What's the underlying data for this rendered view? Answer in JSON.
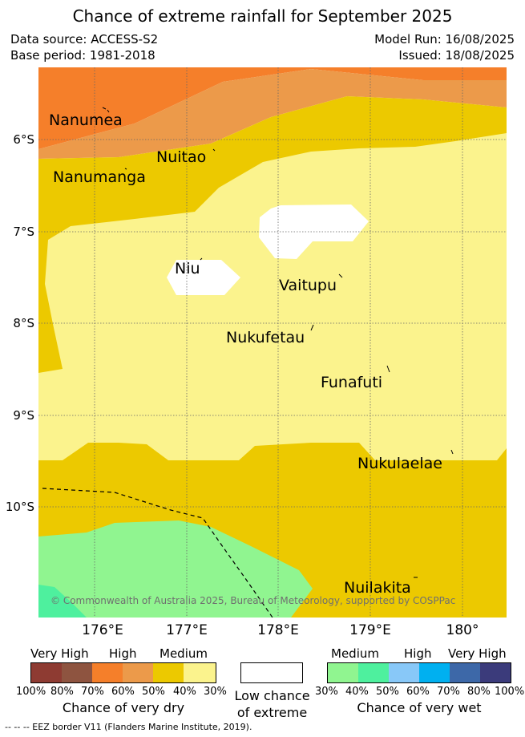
{
  "title": "Chance of extreme rainfall for September 2025",
  "meta": {
    "data_source": "Data source: ACCESS-S2",
    "base_period": "Base period: 1981-2018",
    "model_run": "Model Run: 16/08/2025",
    "issued": "Issued: 18/08/2025"
  },
  "map": {
    "latitudes": [
      "6°S",
      "7°S",
      "8°S",
      "9°S",
      "10°S"
    ],
    "longitudes": [
      "176°E",
      "177°E",
      "178°E",
      "179°E",
      "180°"
    ],
    "places": [
      "Nanumea",
      "Nuitao",
      "Nanumanga",
      "Niu",
      "Vaitupu",
      "Nukufetau",
      "Funafuti",
      "Nukulaelae",
      "Nuilakita"
    ],
    "copyright": "© Commonwealth of Australia 2025, Bureau of Meteorology, supported by COSPPac",
    "colors": {
      "very_high_dry": "#f57f2a",
      "high_dry": "#ec9a4a",
      "medium_dry": "#ecc900",
      "low_dry": "#fbf38d",
      "low_chance": "#ffffff",
      "medium_wet_30": "#90f590",
      "medium_wet_40": "#4ef09e"
    }
  },
  "legend": {
    "dry": {
      "categories": [
        "Very High",
        "High",
        "Medium"
      ],
      "colors": [
        "#8e3b32",
        "#8e5440",
        "#f57f2a",
        "#ec9a4a",
        "#ecc900",
        "#fbf38d"
      ],
      "ticks": [
        "100%",
        "80%",
        "70%",
        "60%",
        "50%",
        "40%",
        "30%"
      ],
      "title": "Chance of very dry"
    },
    "neutral": {
      "color": "#ffffff",
      "title_line1": "Low chance",
      "title_line2": "of extreme"
    },
    "wet": {
      "categories": [
        "Medium",
        "High",
        "Very High"
      ],
      "colors": [
        "#90f590",
        "#4ef09e",
        "#88c8f8",
        "#00b0f0",
        "#3d68a8",
        "#3b3b7b"
      ],
      "ticks": [
        "30%",
        "40%",
        "50%",
        "60%",
        "70%",
        "80%",
        "100%"
      ],
      "title": "Chance of very wet"
    }
  },
  "footer": "-- -- -- EEZ border V11 (Flanders Marine Institute, 2019)."
}
